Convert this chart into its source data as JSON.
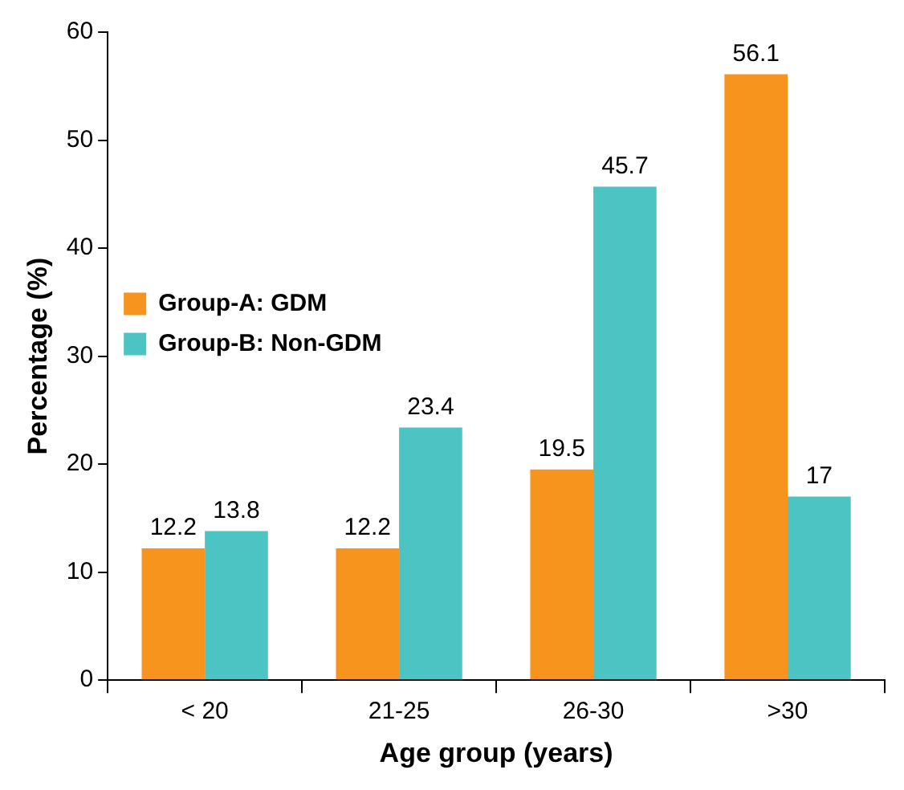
{
  "chart_data": {
    "type": "bar",
    "xlabel": "Age group (years)",
    "ylabel": "Percentage (%)",
    "categories": [
      "< 20",
      "21-25",
      "26-30",
      ">30"
    ],
    "series": [
      {
        "name": "Group-A: GDM",
        "color": "#f7941d",
        "values": [
          12.2,
          12.2,
          19.5,
          56.1
        ]
      },
      {
        "name": "Group-B: Non-GDM",
        "color": "#4cc4c4",
        "values": [
          13.8,
          23.4,
          45.7,
          17
        ]
      }
    ],
    "ylim": [
      0,
      60
    ],
    "yticks": [
      0,
      10,
      20,
      30,
      40,
      50,
      60
    ],
    "grid": false,
    "legend": "top",
    "data_labels": true
  }
}
